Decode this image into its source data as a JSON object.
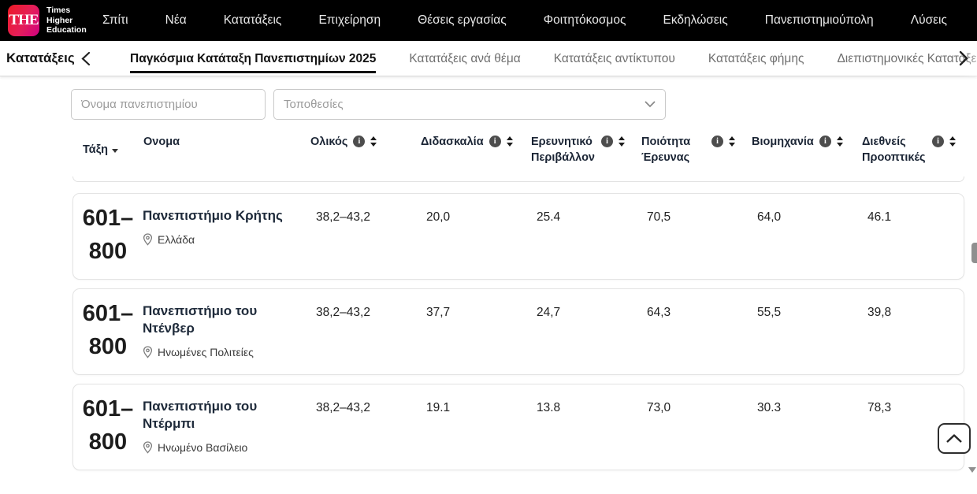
{
  "brand": {
    "logo_text": "THE",
    "name_lines": [
      "Times",
      "Higher",
      "Education"
    ]
  },
  "topnav": {
    "items": [
      "Σπίτι",
      "Νέα",
      "Κατατάξεις",
      "Επιχείρηση",
      "Θέσεις εργασίας",
      "Φοιτητόκοσμος",
      "Εκδηλώσεις",
      "Πανεπιστημιούπολη",
      "Λύσεις"
    ]
  },
  "subnav": {
    "section": "Κατατάξεις",
    "tabs": [
      {
        "label": "Παγκόσμια Κατάταξη Πανεπιστημίων 2025",
        "active": true,
        "faded": false
      },
      {
        "label": "Κατατάξεις ανά θέμα",
        "active": false,
        "faded": false
      },
      {
        "label": "Κατατάξεις αντίκτυπου",
        "active": false,
        "faded": false
      },
      {
        "label": "Κατατάξεις φήμης",
        "active": false,
        "faded": false
      },
      {
        "label": "Διεπιστημονικές Κατατάξεις Επιστ",
        "active": false,
        "faded": true
      }
    ]
  },
  "filters": {
    "university_name_placeholder": "Όνομα πανεπιστημίου",
    "locations_placeholder": "Τοποθεσίες"
  },
  "table": {
    "columns": [
      {
        "key": "rank",
        "label": "Τάξη",
        "info": false,
        "sort": false,
        "sorted_desc": true
      },
      {
        "key": "name",
        "label": "Ονομα",
        "info": false,
        "sort": false,
        "sorted_desc": false
      },
      {
        "key": "overall",
        "label": "Ολικός",
        "info": true,
        "sort": true,
        "sorted_desc": false
      },
      {
        "key": "teaching",
        "label": "Διδασκαλία",
        "info": true,
        "sort": true,
        "sorted_desc": false
      },
      {
        "key": "research_environment",
        "label": "Ερευνητικό Περιβάλλον",
        "info": true,
        "sort": true,
        "sorted_desc": false
      },
      {
        "key": "research_quality",
        "label": "Ποιότητα Έρευνας",
        "info": true,
        "sort": true,
        "sorted_desc": false
      },
      {
        "key": "industry",
        "label": "Βιομηχανία",
        "info": true,
        "sort": true,
        "sorted_desc": false
      },
      {
        "key": "international_outlook",
        "label": "Διεθνείς Προοπτικές",
        "info": true,
        "sort": true,
        "sorted_desc": false
      }
    ],
    "rows": [
      {
        "rank": "601–800",
        "name": "Πανεπιστήμιο Κρήτης",
        "country": "Ελλάδα",
        "overall": "38,2–43,2",
        "teaching": "20,0",
        "research_environment": "25.4",
        "research_quality": "70,5",
        "industry": "64,0",
        "international_outlook": "46.1"
      },
      {
        "rank": "601–800",
        "name": "Πανεπιστήμιο του Ντένβερ",
        "country": "Ηνωμένες Πολιτείες",
        "overall": "38,2–43,2",
        "teaching": "37,7",
        "research_environment": "24,7",
        "research_quality": "64,3",
        "industry": "55,5",
        "international_outlook": "39,8"
      },
      {
        "rank": "601–800",
        "name": "Πανεπιστήμιο του Ντέρμπι",
        "country": "Ηνωμένο Βασίλειο",
        "overall": "38,2–43,2",
        "teaching": "19.1",
        "research_environment": "13.8",
        "research_quality": "73,0",
        "industry": "30.3",
        "international_outlook": "78,3"
      }
    ]
  },
  "colors": {
    "topnav_bg": "#000000",
    "logo_gradient_start": "#ed1c24",
    "logo_gradient_end": "#cf0082",
    "active_tab_underline": "#121212",
    "card_border": "#e3e3e3"
  }
}
